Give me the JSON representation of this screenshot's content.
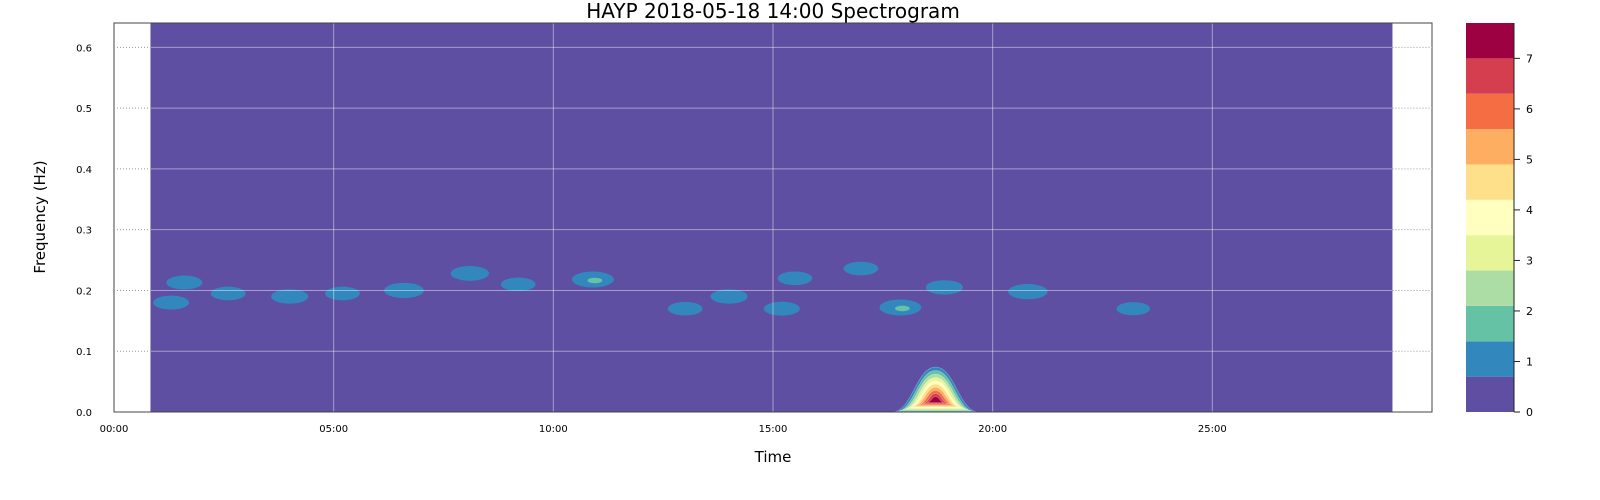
{
  "chart_data": {
    "type": "heatmap",
    "title": "HAYP 2018-05-18 14:00 Spectrogram",
    "xlabel": "Time",
    "ylabel": "Frequency (Hz)",
    "x_ticks": [
      "00:00",
      "05:00",
      "10:00",
      "15:00",
      "20:00",
      "25:00"
    ],
    "x_tick_minutes": [
      0,
      5,
      10,
      15,
      20,
      25
    ],
    "xlim_minutes": [
      0,
      30
    ],
    "data_x_range_minutes": [
      0.83,
      29.1
    ],
    "y_ticks": [
      "0.0",
      "0.1",
      "0.2",
      "0.3",
      "0.4",
      "0.5",
      "0.6"
    ],
    "y_tick_values": [
      0.0,
      0.1,
      0.2,
      0.3,
      0.4,
      0.5,
      0.6
    ],
    "ylim": [
      0,
      0.64
    ],
    "grid": true,
    "colorbar": {
      "ticks": [
        "0",
        "1",
        "2",
        "3",
        "4",
        "5",
        "6",
        "7"
      ],
      "tick_values": [
        0,
        1,
        2,
        3,
        4,
        5,
        6,
        7
      ],
      "levels": [
        0,
        0.7,
        1.4,
        2.1,
        2.8,
        3.5,
        4.2,
        4.9,
        5.6,
        6.3,
        7.0,
        7.7
      ],
      "colors": [
        "#5e4fa2",
        "#3288bd",
        "#66c2a5",
        "#abdda4",
        "#e6f598",
        "#ffffbf",
        "#fee08b",
        "#fdae61",
        "#f46d43",
        "#d53e4f",
        "#9e0142"
      ]
    },
    "features": [
      {
        "t": 1.3,
        "f": 0.18,
        "value": 1.0
      },
      {
        "t": 1.6,
        "f": 0.213,
        "value": 1.0
      },
      {
        "t": 2.6,
        "f": 0.195,
        "value": 0.9
      },
      {
        "t": 4.0,
        "f": 0.19,
        "value": 1.1
      },
      {
        "t": 5.2,
        "f": 0.195,
        "value": 0.9
      },
      {
        "t": 6.6,
        "f": 0.2,
        "value": 1.3
      },
      {
        "t": 8.1,
        "f": 0.228,
        "value": 1.2
      },
      {
        "t": 9.2,
        "f": 0.21,
        "value": 0.9
      },
      {
        "t": 10.9,
        "f": 0.218,
        "value": 1.5
      },
      {
        "t": 13.0,
        "f": 0.17,
        "value": 0.9
      },
      {
        "t": 14.0,
        "f": 0.19,
        "value": 1.1
      },
      {
        "t": 15.2,
        "f": 0.17,
        "value": 1.0
      },
      {
        "t": 15.5,
        "f": 0.22,
        "value": 0.9
      },
      {
        "t": 17.0,
        "f": 0.236,
        "value": 0.9
      },
      {
        "t": 17.9,
        "f": 0.172,
        "value": 1.5
      },
      {
        "t": 18.9,
        "f": 0.205,
        "value": 1.1
      },
      {
        "t": 20.8,
        "f": 0.198,
        "value": 1.3
      },
      {
        "t": 23.2,
        "f": 0.17,
        "value": 0.8
      },
      {
        "t": 18.7,
        "f": 0.018,
        "value": 7.6
      }
    ]
  }
}
